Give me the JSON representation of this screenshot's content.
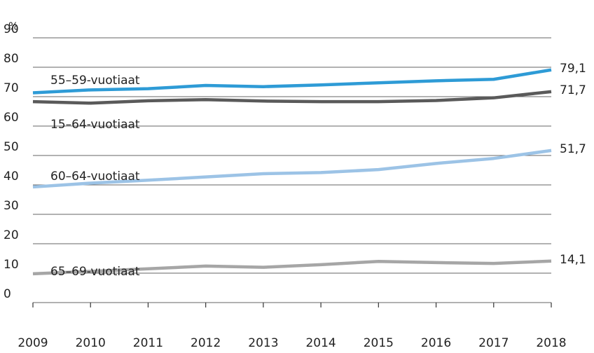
{
  "chart_data": {
    "type": "line",
    "y_label": "%",
    "x": [
      2009,
      2010,
      2011,
      2012,
      2013,
      2014,
      2015,
      2016,
      2017,
      2018
    ],
    "xlim": [
      2009,
      2018
    ],
    "xticks": [
      2009,
      2010,
      2011,
      2012,
      2013,
      2014,
      2015,
      2016,
      2017,
      2018
    ],
    "ylim": [
      0,
      90
    ],
    "yticks": [
      0,
      10,
      20,
      30,
      40,
      50,
      60,
      70,
      80,
      90
    ],
    "grid": true,
    "series": [
      {
        "name": "55–59-vuotiaat",
        "color": "#2e9bd6",
        "values": [
          71.3,
          72.3,
          72.7,
          73.8,
          73.4,
          74.0,
          74.7,
          75.4,
          75.9,
          79.1
        ],
        "value_labels": [
          null,
          null,
          null,
          null,
          null,
          null,
          null,
          null,
          null,
          "79,1"
        ]
      },
      {
        "name": "15–64-vuotiaat",
        "color": "#5a5a5a",
        "values": [
          68.3,
          67.8,
          68.6,
          69.0,
          68.5,
          68.3,
          68.3,
          68.7,
          69.6,
          71.7
        ],
        "value_labels": [
          null,
          null,
          null,
          null,
          null,
          null,
          null,
          null,
          null,
          "71,7"
        ]
      },
      {
        "name": "60–64-vuotiaat",
        "color": "#9cc3e6",
        "values": [
          39.3,
          40.6,
          41.6,
          42.7,
          43.8,
          44.2,
          45.2,
          47.3,
          49.0,
          51.7
        ],
        "value_labels": [
          null,
          null,
          null,
          null,
          null,
          null,
          null,
          null,
          null,
          "51,7"
        ]
      },
      {
        "name": "65–69-vuotiaat",
        "color": "#a6a6a6",
        "values": [
          9.8,
          10.6,
          11.5,
          12.4,
          12.0,
          12.9,
          14.0,
          13.6,
          13.3,
          14.1
        ],
        "value_labels": [
          null,
          null,
          null,
          null,
          null,
          null,
          null,
          null,
          null,
          "14,1"
        ]
      }
    ]
  }
}
